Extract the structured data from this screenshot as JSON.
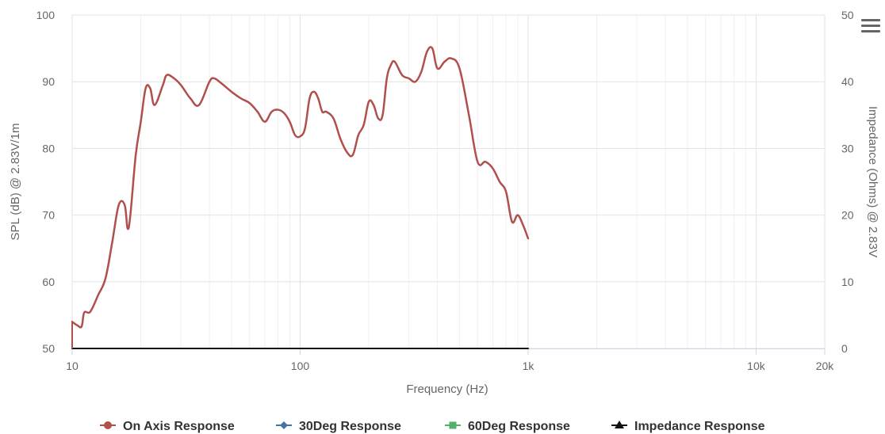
{
  "chart_data": {
    "type": "line",
    "xlabel": "Frequency (Hz)",
    "ylabel_left": "SPL (dB) @ 2.83V/1m",
    "ylabel_right": "Impedance (Ohms) @ 2.83V",
    "x_scale": "log",
    "xlim": [
      10,
      20000
    ],
    "ylim_left": [
      50,
      100
    ],
    "ylim_right": [
      0,
      50
    ],
    "x_ticks": [
      {
        "value": 10,
        "label": "10"
      },
      {
        "value": 100,
        "label": "100"
      },
      {
        "value": 1000,
        "label": "1k"
      },
      {
        "value": 10000,
        "label": "10k"
      },
      {
        "value": 20000,
        "label": "20k"
      }
    ],
    "y_ticks_left": [
      50,
      60,
      70,
      80,
      90,
      100
    ],
    "y_ticks_right": [
      0,
      10,
      20,
      30,
      40,
      50
    ],
    "grid": true,
    "legend_position": "bottom",
    "series": [
      {
        "name": "On Axis Response",
        "color": "#b0504c",
        "marker": "circle",
        "axis": "left",
        "x": [
          10,
          10.5,
          11,
          11.3,
          12,
          13,
          14,
          15,
          16,
          17,
          17.5,
          18,
          19,
          20,
          21,
          22,
          23,
          25,
          26,
          28,
          30,
          33,
          36,
          40,
          42,
          45,
          50,
          55,
          60,
          65,
          70,
          75,
          80,
          85,
          90,
          95,
          100,
          105,
          110,
          115,
          120,
          125,
          130,
          140,
          150,
          160,
          170,
          180,
          190,
          200,
          210,
          220,
          230,
          240,
          250,
          260,
          280,
          300,
          320,
          340,
          360,
          380,
          400,
          430,
          460,
          500,
          550,
          600,
          650,
          700,
          750,
          800,
          850,
          900,
          950,
          1000
        ],
        "y": [
          54,
          53.5,
          53.3,
          55.4,
          55.5,
          58,
          60.5,
          66,
          71.5,
          71.5,
          68,
          70,
          79,
          84,
          89,
          89,
          86.5,
          89.5,
          91,
          90.5,
          89.5,
          87.5,
          86.5,
          90,
          90.5,
          89.8,
          88.5,
          87.5,
          86.8,
          85.5,
          84,
          85.5,
          85.8,
          85.3,
          84,
          82,
          81.8,
          83,
          87.5,
          88.5,
          87.5,
          85.5,
          85.5,
          84.5,
          81.5,
          79.5,
          79,
          82,
          83.5,
          87,
          86.5,
          84.5,
          85,
          90.5,
          92.5,
          93,
          91,
          90.5,
          90,
          91.5,
          94.5,
          95,
          92,
          93,
          93.5,
          92,
          85,
          78,
          78,
          77,
          75,
          73.5,
          69,
          70,
          68.5,
          66.5
        ]
      },
      {
        "name": "30Deg Response",
        "color": "#4572a7",
        "marker": "diamond",
        "axis": "left",
        "x": [],
        "y": []
      },
      {
        "name": "60Deg Response",
        "color": "#55b06b",
        "marker": "square",
        "axis": "left",
        "x": [],
        "y": []
      },
      {
        "name": "Impedance Response",
        "color": "#111111",
        "marker": "triangle",
        "axis": "right",
        "x": [
          10,
          1000
        ],
        "y": [
          0,
          0
        ]
      }
    ]
  }
}
